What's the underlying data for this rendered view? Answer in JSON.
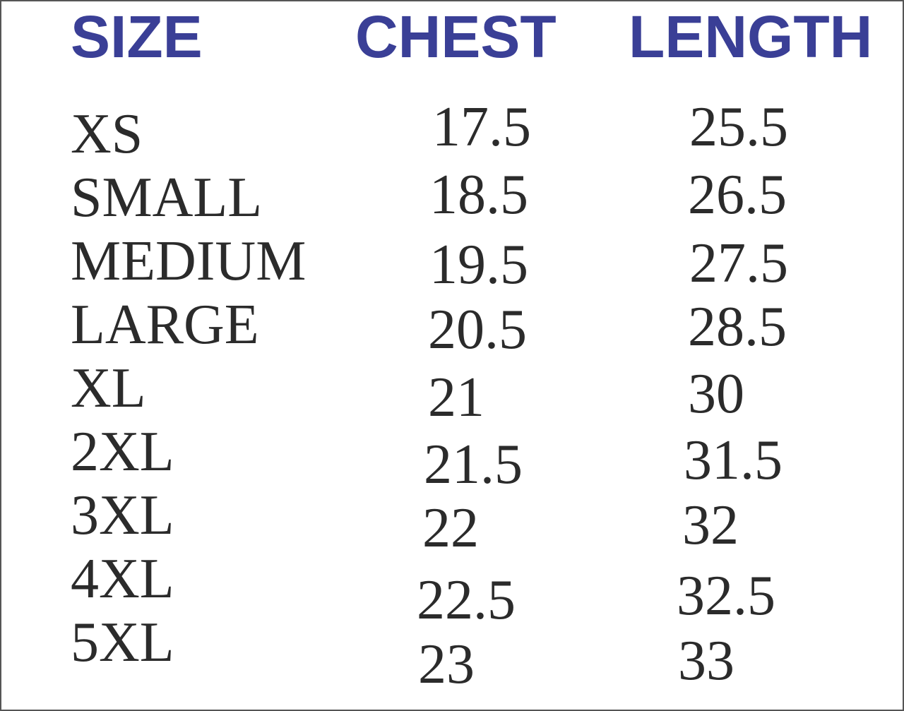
{
  "headers": {
    "size": "SIZE",
    "chest": "CHEST",
    "length": "LENGTH"
  },
  "header_color": "#3a3f96",
  "rows": [
    {
      "size": "XS",
      "chest": "17.5",
      "length": "25.5"
    },
    {
      "size": "SMALL",
      "chest": "18.5",
      "length": "26.5"
    },
    {
      "size": "MEDIUM",
      "chest": "19.5",
      "length": "27.5"
    },
    {
      "size": "LARGE",
      "chest": "20.5",
      "length": "28.5"
    },
    {
      "size": "XL",
      "chest": "21",
      "length": "30"
    },
    {
      "size": "2XL",
      "chest": "21.5",
      "length": "31.5"
    },
    {
      "size": "3XL",
      "chest": "22",
      "length": "32"
    },
    {
      "size": "4XL",
      "chest": "22.5",
      "length": "32.5"
    },
    {
      "size": "5XL",
      "chest": "23",
      "length": "33"
    }
  ]
}
